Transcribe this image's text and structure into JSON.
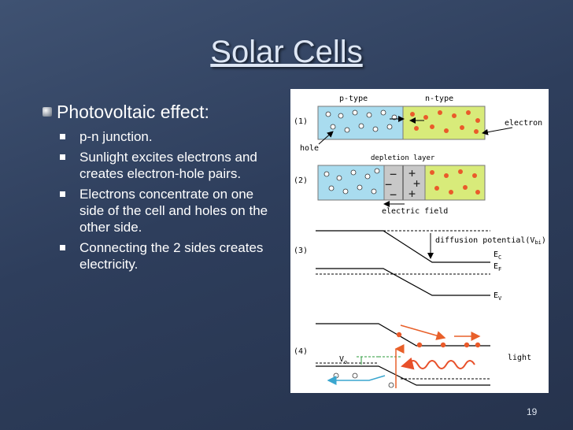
{
  "slide": {
    "title": "Solar Cells",
    "main_bullet": "Photovoltaic effect:",
    "sub_bullets": [
      "p-n junction.",
      "Sunlight excites electrons and creates electron-hole pairs.",
      "Electrons concentrate on one side of the cell and holes on the other side.",
      "Connecting the 2 sides creates electricity."
    ],
    "page_number": "19"
  },
  "figure": {
    "p_type_label": "p-type",
    "n_type_label": "n-type",
    "step1_label": "(1)",
    "step2_label": "(2)",
    "step3_label": "(3)",
    "step4_label": "(4)",
    "electron_label": "electron",
    "hole_label": "hole",
    "depletion_label": "depletion layer",
    "electric_field_label": "electric field",
    "diffusion_label_main": "diffusion potential(V",
    "diffusion_label_sub": "bi",
    "diffusion_label_end": ")",
    "ec_main": "E",
    "ec_sub": "C",
    "ef_main": "E",
    "ef_sub": "F",
    "ev_main": "E",
    "ev_sub": "V",
    "vo_main": "V",
    "vo_sub": "o",
    "light_label": "light",
    "minus_sign": "−",
    "plus_sign": "+",
    "colors": {
      "p_region": "#a9dcef",
      "n_region": "#d8eb7a",
      "depletion": "#c8c8c8",
      "electron": "#ea5a2a",
      "hole_fill": "#ffffff",
      "light_wave": "#e8502a",
      "blue_arrow": "#3aa6cf",
      "green_dash": "#2a9a3a",
      "orange_arrow": "#e8602a"
    }
  }
}
